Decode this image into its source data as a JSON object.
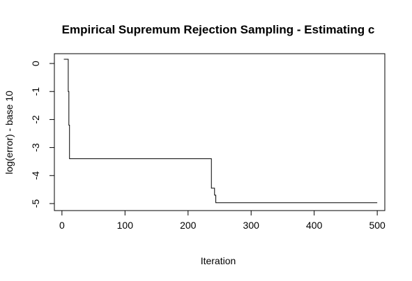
{
  "chart_data": {
    "type": "line",
    "title": "Empirical Supremum Rejection Sampling - Estimating c",
    "xlabel": "Iteration",
    "ylabel": "log(error) - base 10",
    "xlim": [
      -12,
      512
    ],
    "ylim": [
      -5.25,
      0.35
    ],
    "x_ticks": [
      0,
      100,
      200,
      300,
      400,
      500
    ],
    "y_ticks": [
      0,
      -1,
      -2,
      -3,
      -4,
      -5
    ],
    "x_tick_labels": [
      "0",
      "100",
      "200",
      "300",
      "400",
      "500"
    ],
    "y_tick_labels": [
      "0",
      "-1",
      "-2",
      "-3",
      "-4",
      "-5"
    ],
    "line_style": "step",
    "grid": false,
    "series": [
      {
        "points": [
          [
            3,
            0.15
          ],
          [
            10,
            0.15
          ],
          [
            10,
            -1.0
          ],
          [
            11,
            -1.0
          ],
          [
            11,
            -2.2
          ],
          [
            12,
            -2.2
          ],
          [
            12,
            -3.4
          ],
          [
            237,
            -3.4
          ],
          [
            237,
            -4.45
          ],
          [
            242,
            -4.45
          ],
          [
            242,
            -4.7
          ],
          [
            244,
            -4.7
          ],
          [
            244,
            -4.97
          ],
          [
            500,
            -4.97
          ]
        ]
      }
    ]
  }
}
